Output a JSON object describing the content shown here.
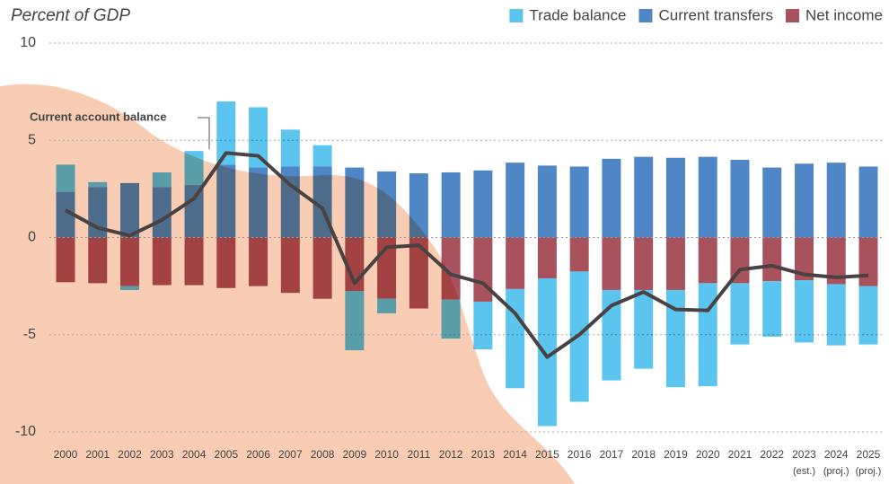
{
  "chart_data": {
    "type": "stacked-bar-line",
    "title": "Percent of GDP",
    "categories": [
      "2000",
      "2001",
      "2002",
      "2003",
      "2004",
      "2005",
      "2006",
      "2007",
      "2008",
      "2009",
      "2010",
      "2011",
      "2012",
      "2013",
      "2014",
      "2015",
      "2016",
      "2017",
      "2018",
      "2019",
      "2020",
      "2021",
      "2022",
      "2023",
      "2024",
      "2025"
    ],
    "category_notes": [
      null,
      null,
      null,
      null,
      null,
      null,
      null,
      null,
      null,
      null,
      null,
      null,
      null,
      null,
      null,
      null,
      null,
      null,
      null,
      null,
      null,
      null,
      null,
      "(est.)",
      "(proj.)",
      "(proj.)"
    ],
    "series": [
      {
        "name": "Trade balance",
        "color": "#5bc4ef",
        "values": [
          1.4,
          0.25,
          -0.2,
          0.75,
          1.75,
          3.25,
          3.1,
          1.9,
          1.1,
          -3.05,
          -0.75,
          0,
          -2.0,
          -2.45,
          -5.1,
          -7.6,
          -6.7,
          -4.65,
          -4.05,
          -5.0,
          -5.3,
          -3.15,
          -2.85,
          -3.2,
          -3.15,
          -3.0
        ]
      },
      {
        "name": "Current transfers",
        "color": "#4f86c6",
        "values": [
          2.35,
          2.6,
          2.8,
          2.6,
          2.7,
          3.75,
          3.6,
          3.65,
          3.65,
          3.6,
          3.4,
          3.3,
          3.35,
          3.45,
          3.85,
          3.7,
          3.65,
          4.05,
          4.15,
          4.1,
          4.15,
          4.0,
          3.6,
          3.8,
          3.85,
          3.65
        ]
      },
      {
        "name": "Net income",
        "color": "#a8525e",
        "values": [
          -2.3,
          -2.35,
          -2.5,
          -2.45,
          -2.45,
          -2.6,
          -2.5,
          -2.85,
          -3.15,
          -2.75,
          -3.15,
          -3.65,
          -3.2,
          -3.3,
          -2.65,
          -2.1,
          -1.75,
          -2.7,
          -2.7,
          -2.7,
          -2.35,
          -2.35,
          -2.25,
          -2.2,
          -2.4,
          -2.5
        ]
      }
    ],
    "line": {
      "name": "Current account balance",
      "color": "#4a4242",
      "values": [
        1.4,
        0.5,
        0.1,
        0.9,
        2.0,
        4.35,
        4.2,
        2.7,
        1.5,
        -2.35,
        -0.5,
        -0.4,
        -1.9,
        -2.35,
        -3.9,
        -6.15,
        -5.0,
        -3.5,
        -2.8,
        -3.7,
        -3.75,
        -1.65,
        -1.45,
        -1.9,
        -2.05,
        -1.95
      ]
    },
    "ylim": [
      -10,
      10
    ],
    "yticks": [
      -10,
      -5,
      0,
      5,
      10
    ],
    "grid": true,
    "legend": "top-right"
  }
}
